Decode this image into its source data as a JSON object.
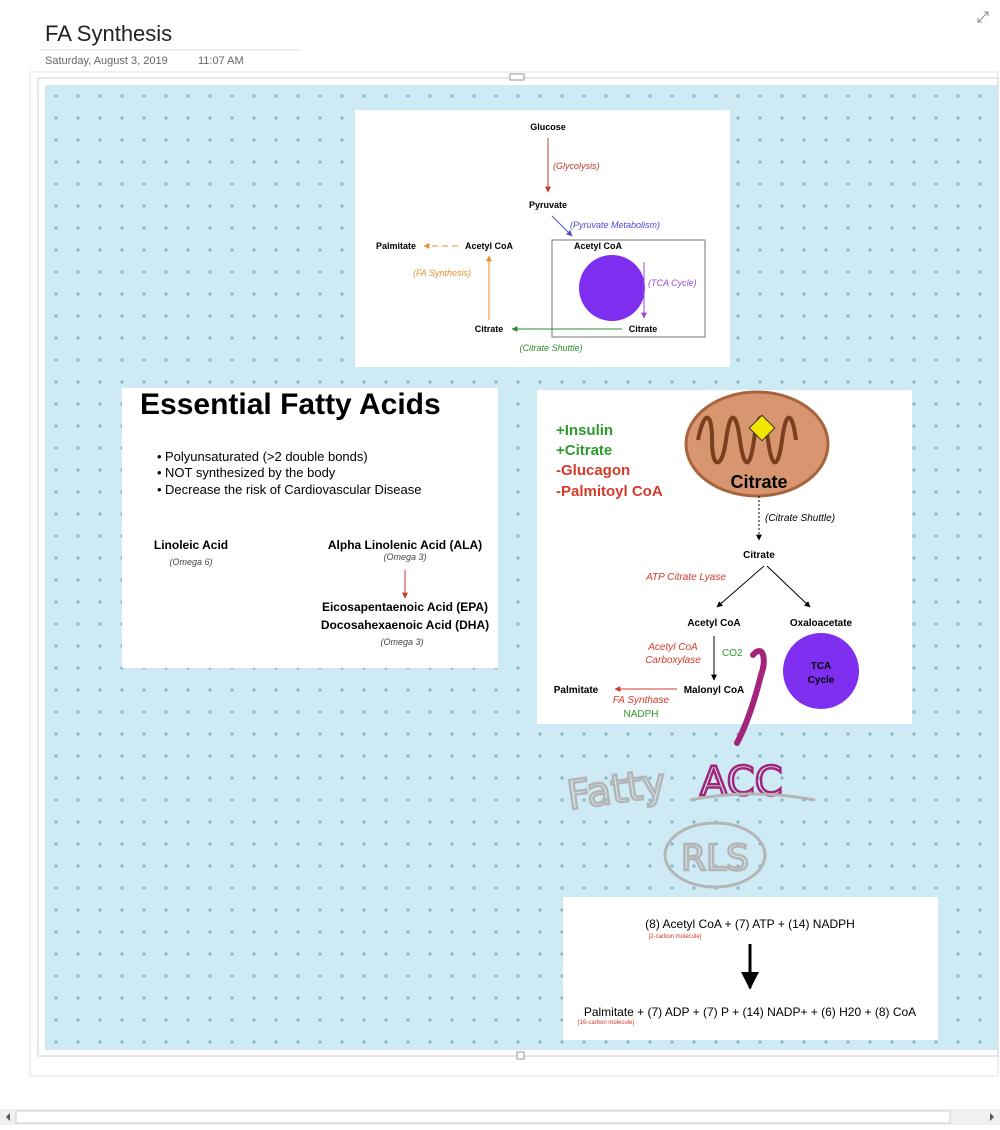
{
  "header": {
    "title": "FA Synthesis",
    "date": "Saturday, August 3, 2019",
    "time": "11:07 AM"
  },
  "pathway": {
    "glucose": "Glucose",
    "glycolysis": "(Glycolysis)",
    "pyruvate": "Pyruvate",
    "pyruvate_metabolism": "(Pyruvate Metabolism)",
    "palmitate": "Palmitate",
    "acetyl_coa_left": "Acetyl CoA",
    "acetyl_coa_right": "Acetyl CoA",
    "fa_synthesis": "(FA Synthesis)",
    "tca_cycle": "(TCA Cycle)",
    "citrate_left": "Citrate",
    "citrate_right": "Citrate",
    "citrate_shuttle": "(Citrate Shuttle)"
  },
  "essential_fatty_acids": {
    "title": "Essential Fatty Acids",
    "bullets": [
      "Polyunsaturated (>2 double bonds)",
      "NOT synthesized by the body",
      "Decrease the risk of Cardiovascular Disease"
    ],
    "linoleic": "Linoleic Acid",
    "omega6": "(Omega 6)",
    "ala": "Alpha Linolenic Acid (ALA)",
    "omega3_ala": "(Omega 3)",
    "epa": "Eicosapentaenoic Acid (EPA)",
    "dha": "Docosahexaenoic Acid (DHA)",
    "omega3_epa": "(Omega 3)"
  },
  "regulation": {
    "activators": [
      "+Insulin",
      "+Citrate"
    ],
    "inhibitors": [
      "-Glucagon",
      "-Palmitoyl CoA"
    ],
    "mito_label": "Citrate",
    "citrate_shuttle": "(Citrate Shuttle)",
    "citrate": "Citrate",
    "atp_citrate_lyase": "ATP Citrate Lyase",
    "acetyl_coa": "Acetyl CoA",
    "oxaloacetate": "Oxaloacetate",
    "acc": [
      "Acetyl CoA",
      "Carboxylase"
    ],
    "co2": "CO2",
    "tca": [
      "TCA",
      "Cycle"
    ],
    "palmitate": "Palmitate",
    "malonyl_coa": "Malonyl CoA",
    "fa_synthase": "FA Synthase",
    "nadph": "NADPH"
  },
  "handwriting": [
    "Fatty",
    "ACC",
    "RLS"
  ],
  "equation": {
    "reactants": "(8) Acetyl CoA  +  (7) ATP  +  (14) NADPH",
    "reactant_note": "[2-carbon molecule]",
    "products": "Palmitate + (7) ADP + (7) P + (14) NADP+ + (6) H20 + (8) CoA",
    "product_note": "[16-carbon molecule]"
  }
}
